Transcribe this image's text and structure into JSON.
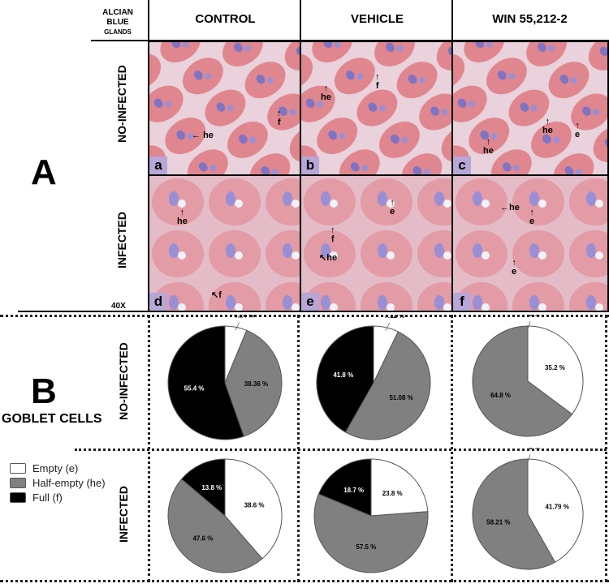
{
  "figure": {
    "panel_a_label": "A",
    "panel_b_label": "B",
    "corner_label": {
      "line1": "ALCIAN",
      "line2": "BLUE",
      "line3": "GLANDS"
    },
    "columns": [
      "CONTROL",
      "VEHICLE",
      "WIN 55,212-2"
    ],
    "rows": [
      "NO-INFECTED",
      "INFECTED"
    ],
    "magnification": "40X",
    "goblet_title": "GOBLET CELLS",
    "micrographs": [
      {
        "tag": "a",
        "annotations": [
          "he",
          "f"
        ]
      },
      {
        "tag": "b",
        "annotations": [
          "he",
          "f"
        ]
      },
      {
        "tag": "c",
        "annotations": [
          "he",
          "he",
          "e"
        ]
      },
      {
        "tag": "d",
        "annotations": [
          "he",
          "f"
        ]
      },
      {
        "tag": "e",
        "annotations": [
          "e",
          "f",
          "he"
        ]
      },
      {
        "tag": "f",
        "annotations": [
          "he",
          "e",
          "e"
        ]
      }
    ],
    "legend": [
      {
        "label": "Empty (e)",
        "color": "#ffffff"
      },
      {
        "label": "Half-empty (he)",
        "color": "#808080"
      },
      {
        "label": "Full (f)",
        "color": "#000000"
      }
    ]
  },
  "chart_data": [
    {
      "type": "pie",
      "title": "NO-INFECTED / CONTROL",
      "categories": [
        "Empty (e)",
        "Half-empty (he)",
        "Full (f)"
      ],
      "values": [
        6.24,
        38.36,
        55.4
      ],
      "labels": [
        "6.24 %",
        "38.36 %",
        "55.4 %"
      ]
    },
    {
      "type": "pie",
      "title": "NO-INFECTED / VEHICLE",
      "categories": [
        "Empty (e)",
        "Half-empty (he)",
        "Full (f)"
      ],
      "values": [
        7.12,
        51.08,
        41.8
      ],
      "labels": [
        "7.12 %",
        "51.08 %",
        "41.8 %"
      ]
    },
    {
      "type": "pie",
      "title": "NO-INFECTED / WIN 55,212-2",
      "categories": [
        "Empty (e)",
        "Half-empty (he)",
        "Full (f)"
      ],
      "values": [
        35.2,
        64.8,
        0
      ],
      "labels": [
        "35.2 %",
        "64.8 %",
        "0 %"
      ]
    },
    {
      "type": "pie",
      "title": "INFECTED / CONTROL",
      "categories": [
        "Empty (e)",
        "Half-empty (he)",
        "Full (f)"
      ],
      "values": [
        38.6,
        47.6,
        13.8
      ],
      "labels": [
        "38.6 %",
        "47.6 %",
        "13.8 %"
      ]
    },
    {
      "type": "pie",
      "title": "INFECTED / VEHICLE",
      "categories": [
        "Empty (e)",
        "Half-empty (he)",
        "Full (f)"
      ],
      "values": [
        23.8,
        57.5,
        18.7
      ],
      "labels": [
        "23.8 %",
        "57.5 %",
        "18.7 %"
      ]
    },
    {
      "type": "pie",
      "title": "INFECTED / WIN 55,212-2",
      "categories": [
        "Empty (e)",
        "Half-empty (he)",
        "Full (f)"
      ],
      "values": [
        41.79,
        58.21,
        0
      ],
      "labels": [
        "41.79 %",
        "58.21 %",
        "0 %"
      ]
    }
  ]
}
